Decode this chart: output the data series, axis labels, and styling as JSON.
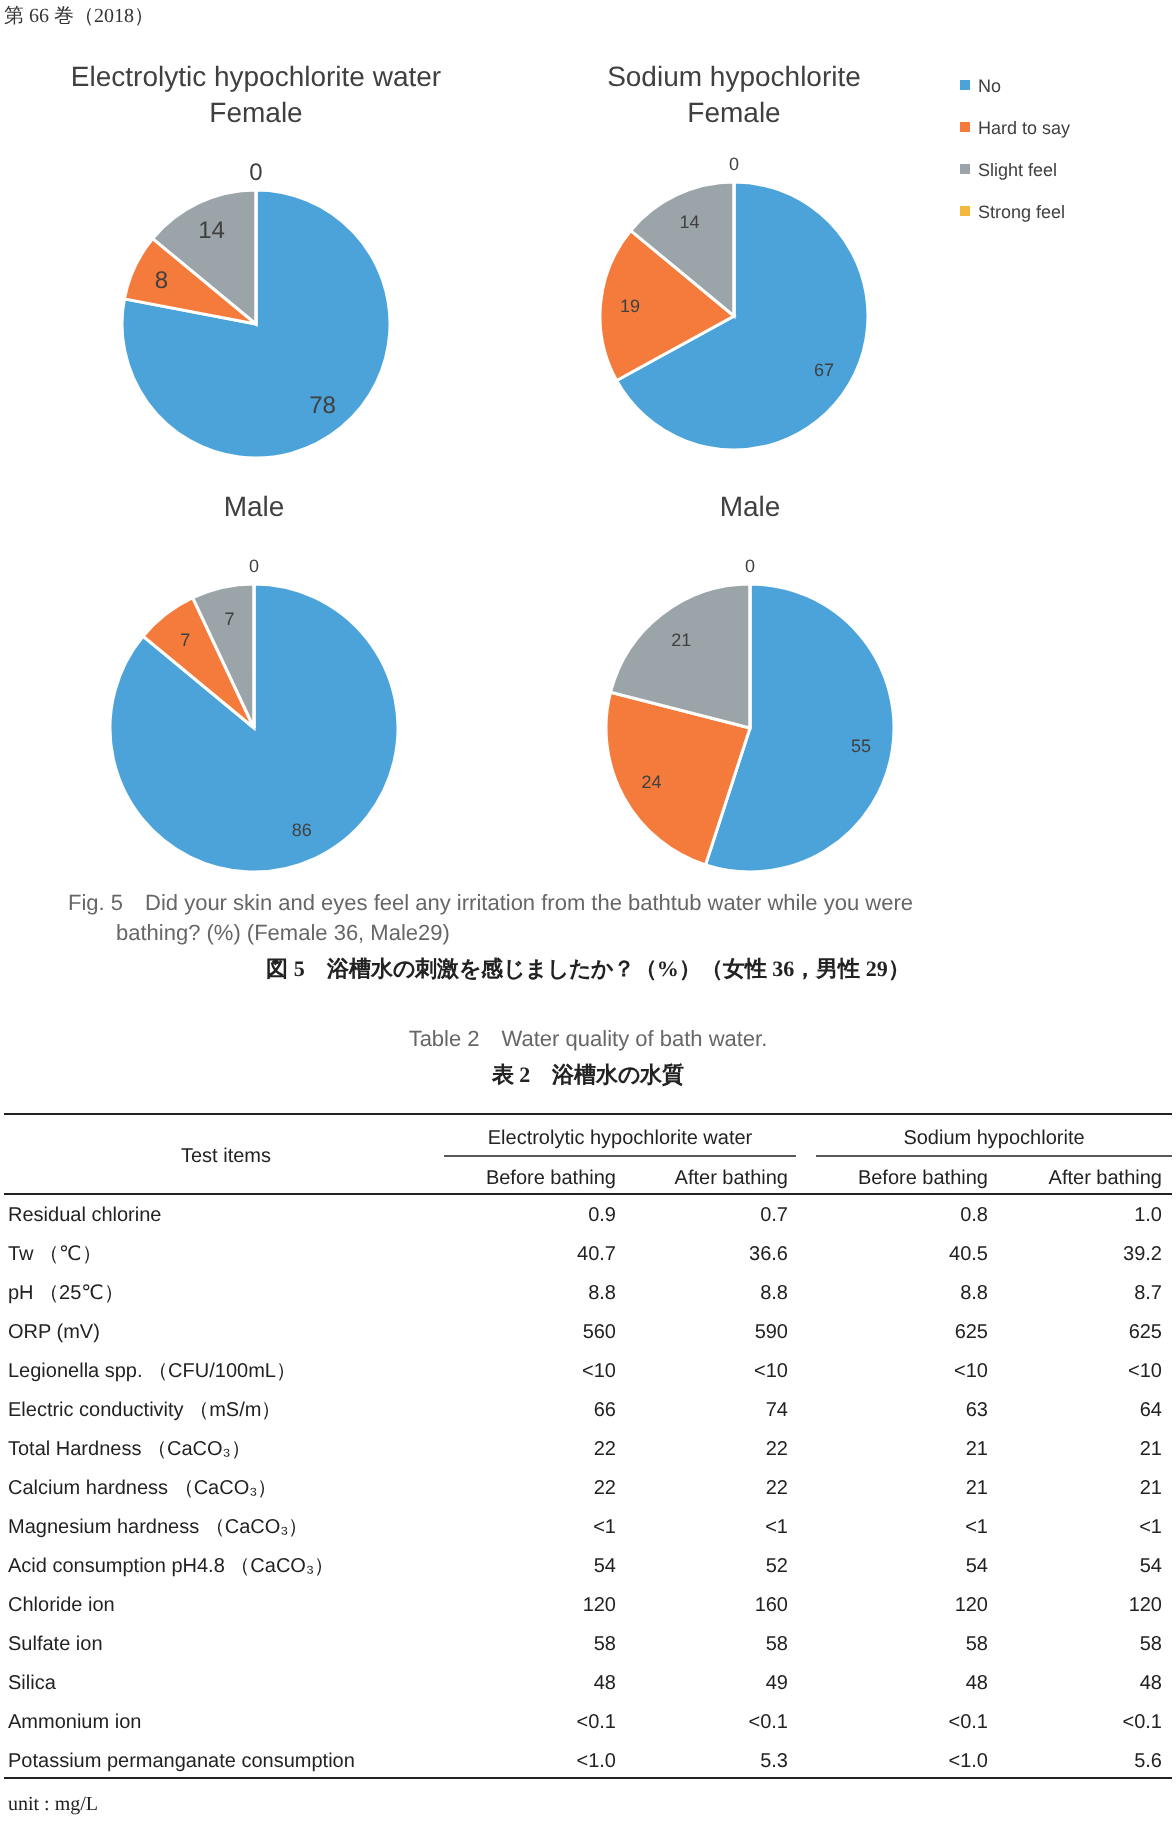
{
  "chart_data": [
    {
      "type": "pie",
      "title": "Electrolytic hypochlorite water\nFemale",
      "categories": [
        null,
        null,
        null,
        null
      ],
      "values": [
        78,
        8,
        14,
        0
      ],
      "colors": [
        "#4ba3d9",
        "#f47b3c",
        "#9ba4a8",
        "#f4b83c"
      ],
      "value_labels": [
        "78",
        "8",
        "14",
        "0"
      ],
      "annotations": [
        "第 66 巻（2018）"
      ]
    },
    {
      "type": "pie",
      "title": "Sodium hypochlorite\nFemale",
      "categories": [
        "No",
        "Hard to say",
        "Slight feel",
        "Strong feel"
      ],
      "values": [
        67,
        19,
        14,
        0
      ],
      "colors": [
        "#4ba3d9",
        "#f47b3c",
        "#9ba4a8",
        "#f4b83c"
      ],
      "value_labels": [
        "67",
        "19",
        "14",
        "0"
      ],
      "legend": "right"
    },
    {
      "type": "pie",
      "title": "Male",
      "categories": [
        null,
        null,
        null,
        null
      ],
      "values": [
        86,
        7,
        7,
        0
      ],
      "colors": [
        "#4ba3d9",
        "#f47b3c",
        "#9ba4a8",
        "#f4b83c"
      ],
      "value_labels": [
        "86",
        "7",
        "7",
        "0"
      ]
    },
    {
      "type": "pie",
      "title": "Male",
      "categories": [
        null,
        null,
        null,
        null
      ],
      "values": [
        55,
        24,
        21,
        0
      ],
      "colors": [
        "#4ba3d9",
        "#f47b3c",
        "#9ba4a8",
        "#f4b83c"
      ],
      "value_labels": [
        "55",
        "24",
        "21",
        "0"
      ],
      "annotations": [
        "Fig. 5　Did your skin and eyes feel any irritation from the bathtub water while you were\nbathing? (%) (Female 36, Male29)",
        "図 5　浴槽水の刺激を感じましたか？（%）（女性 36，男性 29）"
      ]
    },
    {
      "type": "other",
      "title": "Table 2　Water quality of bath water.",
      "subtitle": "表 2　浴槽水の水質",
      "ylabel": "Test items",
      "categories": [
        "Before bathing",
        "After bathing",
        "Before bathing",
        "After bathing"
      ],
      "y_categories": [
        "Residual chlorine",
        "Tw （℃）",
        "pH （25℃）",
        "ORP (mV)",
        "Legionella spp. （CFU/100mL）",
        "Electric conductivity （mS/m）",
        "Total Hardness （CaCO₃）",
        "Calcium hardness （CaCO₃）",
        "Magnesium hardness （CaCO₃）",
        "Acid consumption  pH4.8 （CaCO₃）",
        "Chloride ion",
        "Sulfate ion",
        "Silica",
        "Ammonium ion",
        "Potassium permanganate consumption"
      ],
      "cell_labels": [
        [
          "0.9",
          "0.7",
          "0.8",
          "1.0"
        ],
        [
          "40.7",
          "36.6",
          "40.5",
          "39.2"
        ],
        [
          "8.8",
          "8.8",
          "8.8",
          "8.7"
        ],
        [
          "560",
          "590",
          "625",
          "625"
        ],
        [
          "<10",
          "<10",
          "<10",
          "<10"
        ],
        [
          "66",
          "74",
          "63",
          "64"
        ],
        [
          "22",
          "22",
          "21",
          "21"
        ],
        [
          "22",
          "22",
          "21",
          "21"
        ],
        [
          "<1",
          "<1",
          "<1",
          "<1"
        ],
        [
          "54",
          "52",
          "54",
          "54"
        ],
        [
          "120",
          "160",
          "120",
          "120"
        ],
        [
          "58",
          "58",
          "58",
          "58"
        ],
        [
          "48",
          "49",
          "48",
          "48"
        ],
        [
          "<0.1",
          "<0.1",
          "<0.1",
          "<0.1"
        ],
        [
          "<1.0",
          "5.3",
          "<1.0",
          "5.6"
        ]
      ],
      "annotations": [
        "Electrolytic hypochlorite water",
        "Sodium hypochlorite",
        "unit : mg/L"
      ]
    }
  ]
}
